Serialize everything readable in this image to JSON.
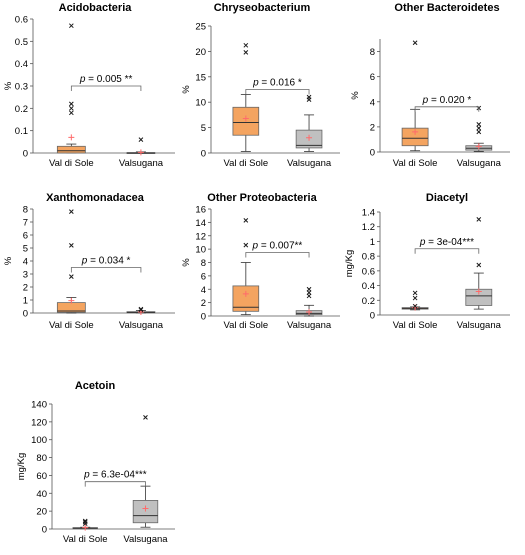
{
  "colors": {
    "val_di_sole": "#f4a460",
    "valsugana": "#c0c0c0",
    "mean_marker": "#ff6b6b",
    "outlier": "#1a1a1a"
  },
  "chart_data": [
    {
      "type": "box",
      "title": "Acidobacteria",
      "ylabel": "%",
      "ylim": [
        0,
        0.6
      ],
      "yticks": [
        "0",
        "0.1",
        "0.2",
        "0.3",
        "0.4",
        "0.5",
        "0.6"
      ],
      "yvals": [
        0,
        0.1,
        0.2,
        0.3,
        0.4,
        0.5,
        0.6
      ],
      "categories": [
        "Val di Sole",
        "Valsugana"
      ],
      "boxes": [
        {
          "min": 0.0,
          "q1": 0.0,
          "median": 0.01,
          "q3": 0.03,
          "max": 0.04,
          "mean": 0.07,
          "outliers": [
            0.57,
            0.22,
            0.2,
            0.18
          ]
        },
        {
          "min": 0.0,
          "q1": 0.0,
          "median": 0.0,
          "q3": 0.002,
          "max": 0.005,
          "mean": 0.003,
          "outliers": [
            0.06
          ]
        }
      ],
      "pvalue": "p = 0.005 **",
      "bracket_y": 0.3
    },
    {
      "type": "box",
      "title": "Chryseobacterium",
      "ylabel": "%",
      "ylim": [
        0,
        25
      ],
      "yticks": [
        "0",
        "5",
        "10",
        "15",
        "20",
        "25"
      ],
      "yvals": [
        0,
        5,
        10,
        15,
        20,
        25
      ],
      "categories": [
        "Val di Sole",
        "Valsugana"
      ],
      "boxes": [
        {
          "min": 0.3,
          "q1": 3.5,
          "median": 6.0,
          "q3": 9.0,
          "max": 11.5,
          "mean": 6.8,
          "outliers": [
            21.2,
            19.8
          ]
        },
        {
          "min": 0.3,
          "q1": 1.0,
          "median": 1.5,
          "q3": 4.5,
          "max": 7.5,
          "mean": 3.0,
          "outliers": [
            11.0,
            10.5
          ]
        }
      ],
      "pvalue": "p = 0.016 *",
      "bracket_y": 12.5
    },
    {
      "type": "box",
      "title": "Other Bacteroidetes",
      "ylabel": "%",
      "ylim": [
        0,
        9
      ],
      "yticks": [
        "0",
        "2",
        "4",
        "6",
        "8"
      ],
      "yvals": [
        0,
        2,
        4,
        6,
        8
      ],
      "categories": [
        "Val di Sole",
        "Valsugana"
      ],
      "boxes": [
        {
          "min": 0.1,
          "q1": 0.5,
          "median": 1.1,
          "q3": 1.9,
          "max": 3.4,
          "mean": 1.6,
          "outliers": [
            8.7
          ]
        },
        {
          "min": 0.05,
          "q1": 0.15,
          "median": 0.3,
          "q3": 0.5,
          "max": 0.7,
          "mean": 0.45,
          "outliers": [
            3.5,
            2.2,
            1.9,
            1.6
          ]
        }
      ],
      "pvalue": "p = 0.020 *",
      "bracket_y": 3.6
    },
    {
      "type": "box",
      "title": "Xanthomonadacea",
      "ylabel": "%",
      "ylim": [
        0,
        8
      ],
      "yticks": [
        "0",
        "1",
        "2",
        "3",
        "4",
        "5",
        "6",
        "7",
        "8"
      ],
      "yvals": [
        0,
        1,
        2,
        3,
        4,
        5,
        6,
        7,
        8
      ],
      "categories": [
        "Val di Sole",
        "Valsugana"
      ],
      "boxes": [
        {
          "min": 0.0,
          "q1": 0.05,
          "median": 0.15,
          "q3": 0.8,
          "max": 1.2,
          "mean": 0.95,
          "outliers": [
            7.8,
            5.2,
            2.8
          ]
        },
        {
          "min": 0.0,
          "q1": 0.02,
          "median": 0.05,
          "q3": 0.1,
          "max": 0.2,
          "mean": 0.08,
          "outliers": [
            0.3,
            0.25
          ]
        }
      ],
      "pvalue": "p = 0.034 *",
      "bracket_y": 3.5
    },
    {
      "type": "box",
      "title": "Other Proteobacteria",
      "ylabel": "%",
      "ylim": [
        0,
        16
      ],
      "yticks": [
        "0",
        "2",
        "4",
        "6",
        "8",
        "10",
        "12",
        "14",
        "16"
      ],
      "yvals": [
        0,
        2,
        4,
        6,
        8,
        10,
        12,
        14,
        16
      ],
      "categories": [
        "Val di Sole",
        "Valsugana"
      ],
      "boxes": [
        {
          "min": 0.2,
          "q1": 0.7,
          "median": 1.3,
          "q3": 4.5,
          "max": 8.0,
          "mean": 3.3,
          "outliers": [
            14.3,
            10.6
          ]
        },
        {
          "min": 0.0,
          "q1": 0.2,
          "median": 0.4,
          "q3": 0.8,
          "max": 1.6,
          "mean": 0.6,
          "outliers": [
            4.0,
            3.5,
            3.0
          ]
        }
      ],
      "pvalue": "p = 0.007**",
      "bracket_y": 9.5
    },
    {
      "type": "box",
      "title": "Diacetyl",
      "ylabel": "mg/Kg",
      "ylim": [
        0,
        1.4
      ],
      "yticks": [
        "0",
        "0.2",
        "0.4",
        "0.6",
        "0.8",
        "1",
        "1.2",
        "1.4"
      ],
      "yvals": [
        0,
        0.2,
        0.4,
        0.6,
        0.8,
        1.0,
        1.2,
        1.4
      ],
      "categories": [
        "Val di Sole",
        "Valsugana"
      ],
      "boxes": [
        {
          "min": 0.07,
          "q1": 0.08,
          "median": 0.09,
          "q3": 0.1,
          "max": 0.11,
          "mean": 0.1,
          "outliers": [
            0.3,
            0.23,
            0.12
          ]
        },
        {
          "min": 0.08,
          "q1": 0.13,
          "median": 0.26,
          "q3": 0.35,
          "max": 0.57,
          "mean": 0.32,
          "outliers": [
            1.3,
            0.68
          ]
        }
      ],
      "pvalue": "p = 3e-04***",
      "bracket_y": 0.9
    },
    {
      "type": "box",
      "title": "Acetoin",
      "ylabel": "mg/Kg",
      "ylim": [
        0,
        140
      ],
      "yticks": [
        "0",
        "20",
        "40",
        "60",
        "80",
        "100",
        "120",
        "140"
      ],
      "yvals": [
        0,
        20,
        40,
        60,
        80,
        100,
        120,
        140
      ],
      "categories": [
        "Val di Sole",
        "Valsugana"
      ],
      "boxes": [
        {
          "min": 0.3,
          "q1": 0.5,
          "median": 1.0,
          "q3": 1.5,
          "max": 2.0,
          "mean": 1.5,
          "outliers": [
            9.0,
            8.0,
            6.0
          ]
        },
        {
          "min": 2.0,
          "q1": 7.0,
          "median": 15.0,
          "q3": 32.0,
          "max": 48.0,
          "mean": 23.0,
          "outliers": [
            125.0
          ]
        }
      ],
      "pvalue": "p = 6.3e-04***",
      "bracket_y": 53
    }
  ]
}
